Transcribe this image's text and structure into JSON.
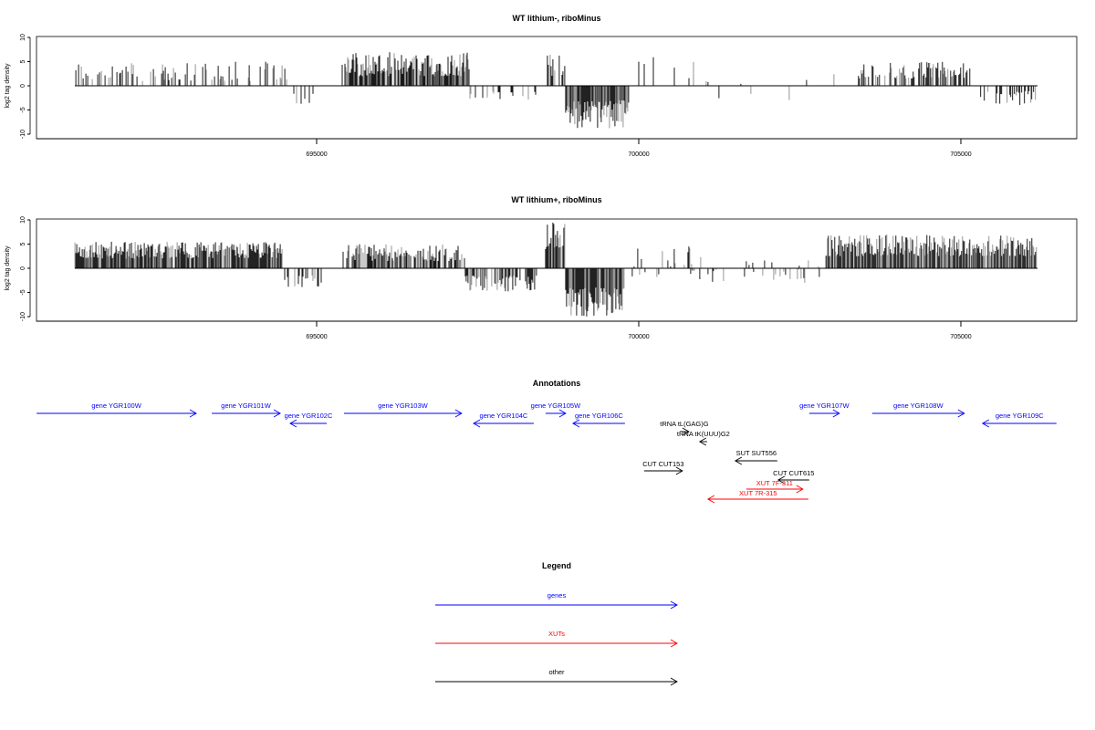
{
  "chart_data": [
    {
      "type": "bar",
      "title": "WT lithium-, riboMinus",
      "ylabel": "log2 tag density",
      "xlabel": "",
      "xlim": [
        690650,
        706800
      ],
      "ylim": [
        -10,
        10
      ],
      "xticks": [
        695000,
        700000,
        705000
      ],
      "yticks": [
        10,
        5,
        0,
        -5,
        -10
      ],
      "segments": [
        {
          "start": 691248,
          "end": 694547,
          "density": 0.35,
          "min": 1,
          "max": 5
        },
        {
          "start": 694547,
          "end": 695071,
          "density": 0.15,
          "min": -4,
          "max": -1
        },
        {
          "start": 695396,
          "end": 697379,
          "density": 0.9,
          "min": 2,
          "max": 7
        },
        {
          "start": 697379,
          "end": 698441,
          "density": 0.2,
          "min": -3,
          "max": -1
        },
        {
          "start": 698554,
          "end": 698866,
          "density": 0.5,
          "min": 2,
          "max": 9.5
        },
        {
          "start": 698866,
          "end": 699857,
          "density": 0.95,
          "min": -9,
          "max": -3
        },
        {
          "start": 700000,
          "end": 700990,
          "density": 0.1,
          "min": 1,
          "max": 6
        },
        {
          "start": 700990,
          "end": 703397,
          "density": 0.05,
          "min": -3,
          "max": 3
        },
        {
          "start": 703397,
          "end": 705167,
          "density": 0.6,
          "min": 1.5,
          "max": 5
        },
        {
          "start": 705308,
          "end": 706186,
          "density": 0.45,
          "min": -4,
          "max": -1
        }
      ]
    },
    {
      "type": "bar",
      "title": "WT lithium+, riboMinus",
      "ylabel": "log2 tag density",
      "xlabel": "",
      "xlim": [
        690650,
        706800
      ],
      "ylim": [
        -10,
        10
      ],
      "xticks": [
        695000,
        700000,
        705000
      ],
      "yticks": [
        10,
        5,
        0,
        -5,
        -10
      ],
      "segments": [
        {
          "start": 691248,
          "end": 694476,
          "density": 0.95,
          "min": 2,
          "max": 5.5
        },
        {
          "start": 694476,
          "end": 695071,
          "density": 0.4,
          "min": -4,
          "max": -1.5
        },
        {
          "start": 695396,
          "end": 697308,
          "density": 0.7,
          "min": 1.5,
          "max": 5
        },
        {
          "start": 697308,
          "end": 698441,
          "density": 0.6,
          "min": -5,
          "max": -1.5
        },
        {
          "start": 698554,
          "end": 698866,
          "density": 0.8,
          "min": 3,
          "max": 9.5
        },
        {
          "start": 698866,
          "end": 699786,
          "density": 0.98,
          "min": -10,
          "max": -4
        },
        {
          "start": 699857,
          "end": 700848,
          "density": 0.3,
          "min": -3,
          "max": 5
        },
        {
          "start": 700848,
          "end": 702901,
          "density": 0.2,
          "min": -3,
          "max": 2.5
        },
        {
          "start": 702901,
          "end": 706186,
          "density": 0.95,
          "min": 2.5,
          "max": 7
        }
      ]
    }
  ],
  "annotations": {
    "title": "Annotations",
    "items": [
      {
        "label": "gene YGR100W",
        "start": 690653,
        "end": 693131,
        "type": "gene"
      },
      {
        "label": "gene YGR101W",
        "start": 693372,
        "end": 694434,
        "type": "gene"
      },
      {
        "label": "gene YGR102C",
        "start": 695156,
        "end": 694589,
        "type": "gene"
      },
      {
        "label": "gene YGR103W",
        "start": 695425,
        "end": 697251,
        "type": "gene"
      },
      {
        "label": "gene YGR104C",
        "start": 698370,
        "end": 697436,
        "type": "gene"
      },
      {
        "label": "gene YGR105W",
        "start": 698554,
        "end": 698866,
        "type": "gene"
      },
      {
        "label": "gene YGR106C",
        "start": 699786,
        "end": 698979,
        "type": "gene"
      },
      {
        "label": "gene YGR107W",
        "start": 702646,
        "end": 703114,
        "type": "gene"
      },
      {
        "label": "gene YGR108W",
        "start": 703623,
        "end": 705054,
        "type": "gene"
      },
      {
        "label": "gene YGR109C",
        "start": 706484,
        "end": 705337,
        "type": "gene"
      },
      {
        "label": "tRNA tL(GAG)G",
        "start": 700636,
        "end": 700778,
        "type": "other"
      },
      {
        "label": "tRNA tK(UUU)G2",
        "start": 701061,
        "end": 700947,
        "type": "other"
      },
      {
        "label": "SUT SUT556",
        "start": 702151,
        "end": 701499,
        "type": "other"
      },
      {
        "label": "CUT CUT153",
        "start": 700083,
        "end": 700678,
        "type": "other"
      },
      {
        "label": "CUT CUT615",
        "start": 702646,
        "end": 702165,
        "type": "other"
      },
      {
        "label": "XUT 7F-311",
        "start": 701669,
        "end": 702547,
        "type": "xut"
      },
      {
        "label": "XUT 7R-315",
        "start": 702632,
        "end": 701074,
        "type": "xut"
      }
    ]
  },
  "legend": {
    "title": "Legend",
    "entries": [
      {
        "label": "genes",
        "color": "#0000ff"
      },
      {
        "label": "XUTs",
        "color": "#ff0000"
      },
      {
        "label": "other",
        "color": "#000000"
      }
    ]
  },
  "colors": {
    "gene": "#0000ff",
    "xut": "#ff0000",
    "other": "#000000"
  }
}
